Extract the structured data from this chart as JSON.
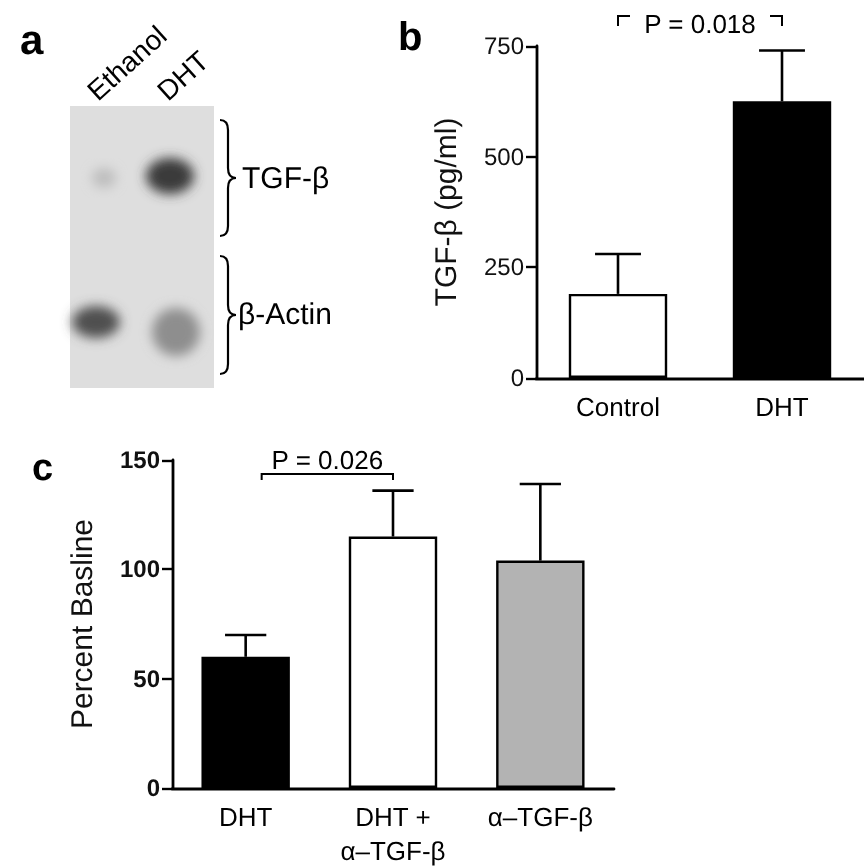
{
  "chart_data": [
    {
      "type": "other",
      "title": "a",
      "annotations": [
        "Ethanol",
        "DHT",
        "TGF-β",
        "β-Actin"
      ]
    },
    {
      "type": "bar",
      "title": "b",
      "categories": [
        "Control",
        "DHT"
      ],
      "values": [
        190,
        625
      ],
      "colors": [
        "#ffffff",
        "#000000"
      ],
      "errors": [
        [
          190,
          280
        ],
        [
          625,
          740
        ]
      ],
      "ylim": [
        0,
        750
      ],
      "yticks": [
        0,
        250,
        500,
        750
      ],
      "ylabel": "TGF-β (pg/ml)",
      "annotations": [
        "P = 0.018"
      ]
    },
    {
      "type": "bar",
      "title": "c",
      "categories": [
        "DHT",
        "DHT +\nα–TGF-β",
        "α–TGF-β"
      ],
      "values": [
        60,
        115,
        104
      ],
      "colors": [
        "#000000",
        "#ffffff",
        "#b3b3b3"
      ],
      "errors": [
        [
          60,
          70
        ],
        [
          115,
          136
        ],
        [
          104,
          139
        ]
      ],
      "ylim": [
        0,
        150
      ],
      "yticks": [
        0,
        50,
        100,
        150
      ],
      "ylabel": "Percent Basline",
      "annotations": [
        "P = 0.026"
      ]
    }
  ]
}
